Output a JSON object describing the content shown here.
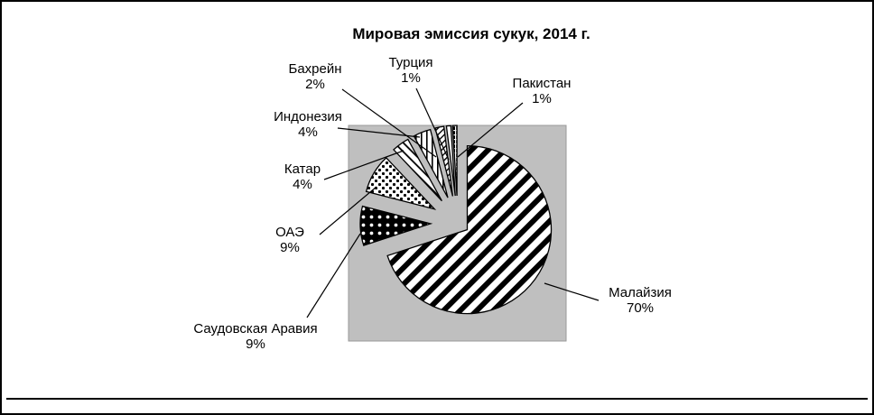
{
  "chart_data": {
    "type": "pie",
    "title": "Мировая эмиссия сукук, 2014 г.",
    "unit": "%",
    "direction": "clockwise",
    "start_angle_deg": 0,
    "legend": "none",
    "label_style": "callout-labels-with-percent",
    "colors": {
      "plot_background": "#bfbfbf",
      "page_background": "#ffffff",
      "foreground": "#000000"
    },
    "slices": [
      {
        "label": "Малайзия",
        "value": 70,
        "pct": "70%",
        "pattern": "wide-diagonal-stripes"
      },
      {
        "label": "Саудовская Аравия",
        "value": 9,
        "pct": "9%",
        "pattern": "black-with-white-dots"
      },
      {
        "label": "ОАЭ",
        "value": 9,
        "pct": "9%",
        "pattern": "white-with-black-dots"
      },
      {
        "label": "Катар",
        "value": 4,
        "pct": "4%",
        "pattern": "thin-diagonal-lines"
      },
      {
        "label": "Индонезия",
        "value": 4,
        "pct": "4%",
        "pattern": "vertical-lines"
      },
      {
        "label": "Бахрейн",
        "value": 2,
        "pct": "2%",
        "pattern": "fine-diagonal-lines"
      },
      {
        "label": "Турция",
        "value": 1,
        "pct": "1%",
        "pattern": "plain-white"
      },
      {
        "label": "Пакистан",
        "value": 1,
        "pct": "1%",
        "pattern": "dark-grid"
      }
    ]
  }
}
